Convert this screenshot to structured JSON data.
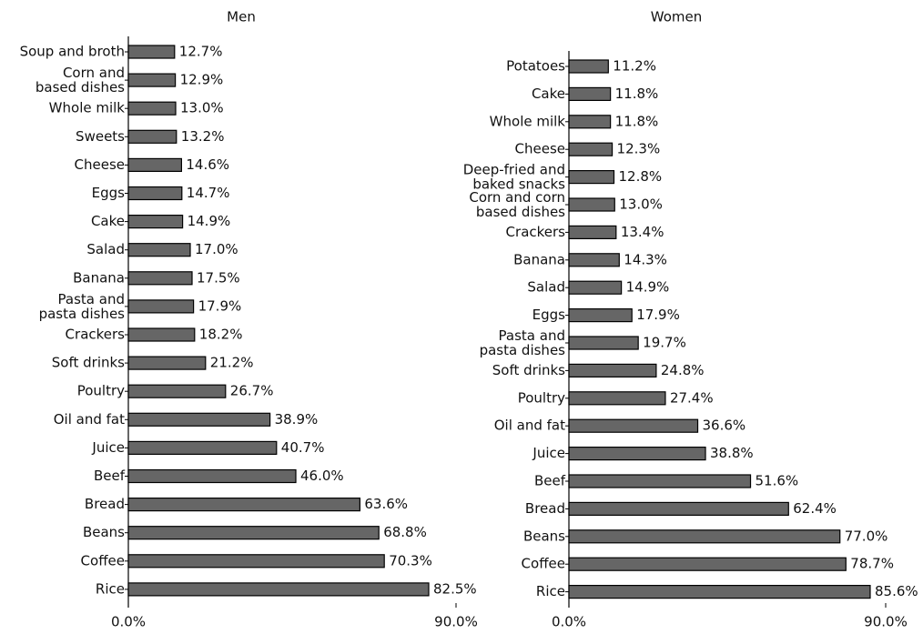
{
  "chart_data": [
    {
      "type": "bar",
      "orientation": "horizontal",
      "title": "Men",
      "color": "#666666",
      "categories": [
        "Soup and broth",
        "Corn and\nbased dishes",
        "Whole milk",
        "Sweets",
        "Cheese",
        "Eggs",
        "Cake",
        "Salad",
        "Banana",
        "Pasta and\npasta dishes",
        "Crackers",
        "Soft drinks",
        "Poultry",
        "Oil and fat",
        "Juice",
        "Beef",
        "Bread",
        "Beans",
        "Coffee",
        "Rice"
      ],
      "values": [
        12.7,
        12.9,
        13.0,
        13.2,
        14.6,
        14.7,
        14.9,
        17.0,
        17.5,
        17.9,
        18.2,
        21.2,
        26.7,
        38.9,
        40.7,
        46.0,
        63.6,
        68.8,
        70.3,
        82.5
      ],
      "value_labels": [
        "12.7%",
        "12.9%",
        "13.0%",
        "13.2%",
        "14.6%",
        "14.7%",
        "14.9%",
        "17.0%",
        "17.5%",
        "17.9%",
        "18.2%",
        "21.2%",
        "26.7%",
        "38.9%",
        "40.7%",
        "46.0%",
        "63.6%",
        "68.8%",
        "70.3%",
        "82.5%"
      ],
      "xlim": [
        0,
        90
      ],
      "xticks": [
        {
          "value": 0,
          "label": "0.0%"
        },
        {
          "value": 90,
          "label": "90.0%"
        }
      ]
    },
    {
      "type": "bar",
      "orientation": "horizontal",
      "title": "Women",
      "color": "#666666",
      "categories": [
        "Potatoes",
        "Cake",
        "Whole milk",
        "Cheese",
        "Deep-fried and\nbaked snacks",
        "Corn and corn\nbased dishes",
        "Crackers",
        "Banana",
        "Salad",
        "Eggs",
        "Pasta and\npasta dishes",
        "Soft drinks",
        "Poultry",
        "Oil and fat",
        "Juice",
        "Beef",
        "Bread",
        "Beans",
        "Coffee",
        "Rice"
      ],
      "values": [
        11.2,
        11.8,
        11.8,
        12.3,
        12.8,
        13.0,
        13.4,
        14.3,
        14.9,
        17.9,
        19.7,
        24.8,
        27.4,
        36.6,
        38.8,
        51.6,
        62.4,
        77.0,
        78.7,
        85.6
      ],
      "value_labels": [
        "11.2%",
        "11.8%",
        "11.8%",
        "12.3%",
        "12.8%",
        "13.0%",
        "13.4%",
        "14.3%",
        "14.9%",
        "17.9%",
        "19.7%",
        "24.8%",
        "27.4%",
        "36.6%",
        "38.8%",
        "51.6%",
        "62.4%",
        "77.0%",
        "78.7%",
        "85.6%"
      ],
      "xlim": [
        0,
        90
      ],
      "xticks": [
        {
          "value": 0,
          "label": "0.0%"
        },
        {
          "value": 90,
          "label": "90.0%"
        }
      ]
    }
  ]
}
